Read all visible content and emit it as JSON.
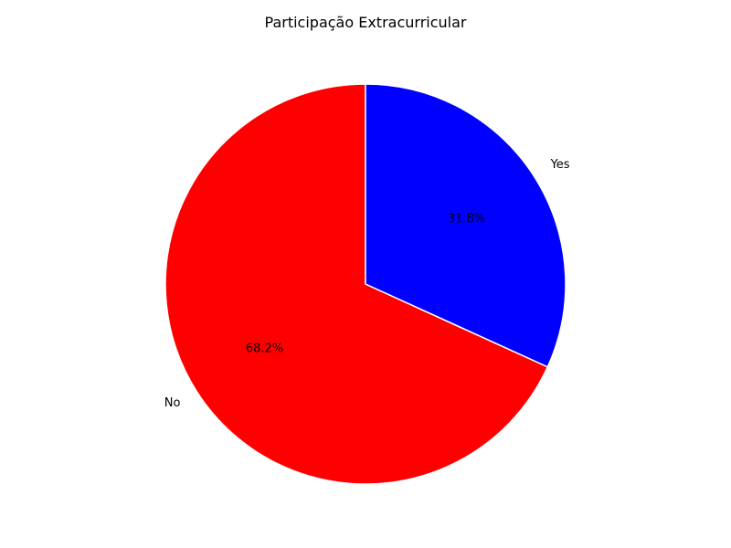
{
  "chart_data": {
    "type": "pie",
    "title": "Participação Extracurricular",
    "slices": [
      {
        "label": "No",
        "value": 68.2,
        "pct_label": "68.2%",
        "color": "#ff0000"
      },
      {
        "label": "Yes",
        "value": 31.8,
        "pct_label": "31.8%",
        "color": "#0000ff"
      }
    ],
    "start_angle_deg": 90,
    "direction": "counterclockwise",
    "edge_color": "#ffffff",
    "legend": false
  }
}
